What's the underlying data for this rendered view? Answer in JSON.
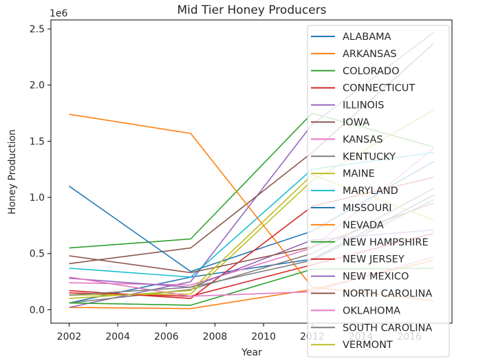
{
  "chart_data": {
    "type": "line",
    "title": "Mid Tier Honey Producers",
    "xlabel": "Year",
    "ylabel": "Honey Production",
    "y_offset_text": "1e6",
    "xlim": [
      2001.25,
      2017.75
    ],
    "ylim": [
      -0.12,
      2.58
    ],
    "y_multiplier": 1000000,
    "xticks": [
      2002,
      2004,
      2006,
      2008,
      2010,
      2012,
      2014,
      2016
    ],
    "xtick_labels": [
      "2002",
      "2004",
      "2006",
      "2008",
      "2010",
      "2012",
      "2014",
      "2016"
    ],
    "yticks": [
      0.0,
      0.5,
      1.0,
      1.5,
      2.0,
      2.5
    ],
    "ytick_labels": [
      "0.0",
      "0.5",
      "1.0",
      "1.5",
      "2.0",
      "2.5"
    ],
    "legend_position": "upper-right",
    "grid": false,
    "series": [
      {
        "name": "ALABAMA",
        "color": "#1f77b4",
        "x": [
          2002,
          2007,
          2012,
          2017
        ],
        "y": [
          0.06,
          0.29,
          0.45,
          1.02
        ]
      },
      {
        "name": "ARKANSAS",
        "color": "#ff7f0e",
        "x": [
          2002,
          2007,
          2012,
          2017
        ],
        "y": [
          0.02,
          0.01,
          0.18,
          0.44
        ]
      },
      {
        "name": "COLORADO",
        "color": "#2ca02c",
        "x": [
          2002,
          2007,
          2012,
          2017
        ],
        "y": [
          0.55,
          0.63,
          1.75,
          1.45
        ]
      },
      {
        "name": "CONNECTICUT",
        "color": "#d62728",
        "x": [
          2002,
          2007,
          2012,
          2017
        ],
        "y": [
          0.15,
          0.12,
          0.4,
          0.68
        ]
      },
      {
        "name": "ILLINOIS",
        "color": "#9467bd",
        "x": [
          2002,
          2007,
          2012,
          2017
        ],
        "y": [
          0.02,
          0.25,
          1.65,
          2.47
        ]
      },
      {
        "name": "IOWA",
        "color": "#8c564b",
        "x": [
          2002,
          2007,
          2012,
          2017
        ],
        "y": [
          0.41,
          0.55,
          1.4,
          2.37
        ]
      },
      {
        "name": "KANSAS",
        "color": "#e377c2",
        "x": [
          2002,
          2007,
          2012,
          2017
        ],
        "y": [
          0.24,
          0.22,
          0.55,
          1.44
        ]
      },
      {
        "name": "KENTUCKY",
        "color": "#7f7f7f",
        "x": [
          2002,
          2007,
          2012,
          2017
        ],
        "y": [
          0.06,
          0.18,
          0.5,
          1.08
        ]
      },
      {
        "name": "MAINE",
        "color": "#bcbd22",
        "x": [
          2002,
          2007,
          2012,
          2017
        ],
        "y": [
          0.13,
          0.14,
          1.15,
          1.78
        ]
      },
      {
        "name": "MARYLAND",
        "color": "#17becf",
        "x": [
          2002,
          2007,
          2012,
          2017
        ],
        "y": [
          0.37,
          0.29,
          1.25,
          1.4
        ]
      },
      {
        "name": "MISSOURI",
        "color": "#1f77b4",
        "x": [
          2002,
          2007,
          2012,
          2017
        ],
        "y": [
          1.1,
          0.34,
          0.7,
          1.32
        ]
      },
      {
        "name": "NEVADA",
        "color": "#ff7f0e",
        "x": [
          2002,
          2007,
          2012,
          2017
        ],
        "y": [
          1.74,
          1.57,
          0.2,
          0.08
        ]
      },
      {
        "name": "NEW HAMPSHIRE",
        "color": "#2ca02c",
        "x": [
          2002,
          2007,
          2012,
          2017
        ],
        "y": [
          0.06,
          0.04,
          0.36,
          0.37
        ]
      },
      {
        "name": "NEW JERSEY",
        "color": "#d62728",
        "x": [
          2002,
          2007,
          2012,
          2017
        ],
        "y": [
          0.17,
          0.1,
          0.92,
          1.18
        ]
      },
      {
        "name": "NEW MEXICO",
        "color": "#9467bd",
        "x": [
          2002,
          2007,
          2012,
          2017
        ],
        "y": [
          0.28,
          0.2,
          0.62,
          0.71
        ]
      },
      {
        "name": "NORTH CAROLINA",
        "color": "#8c564b",
        "x": [
          2002,
          2007,
          2012,
          2017
        ],
        "y": [
          0.48,
          0.33,
          0.56,
          0.95
        ]
      },
      {
        "name": "OKLAHOMA",
        "color": "#e377c2",
        "x": [
          2002,
          2007,
          2012,
          2017
        ],
        "y": [
          0.29,
          0.12,
          0.16,
          0.47
        ]
      },
      {
        "name": "SOUTH CAROLINA",
        "color": "#7f7f7f",
        "x": [
          2002,
          2007,
          2012,
          2017
        ],
        "y": [
          0.13,
          0.2,
          0.44,
          0.98
        ]
      },
      {
        "name": "VERMONT",
        "color": "#bcbd22",
        "x": [
          2002,
          2007,
          2012,
          2017
        ],
        "y": [
          0.1,
          0.17,
          1.2,
          0.8
        ]
      }
    ]
  }
}
